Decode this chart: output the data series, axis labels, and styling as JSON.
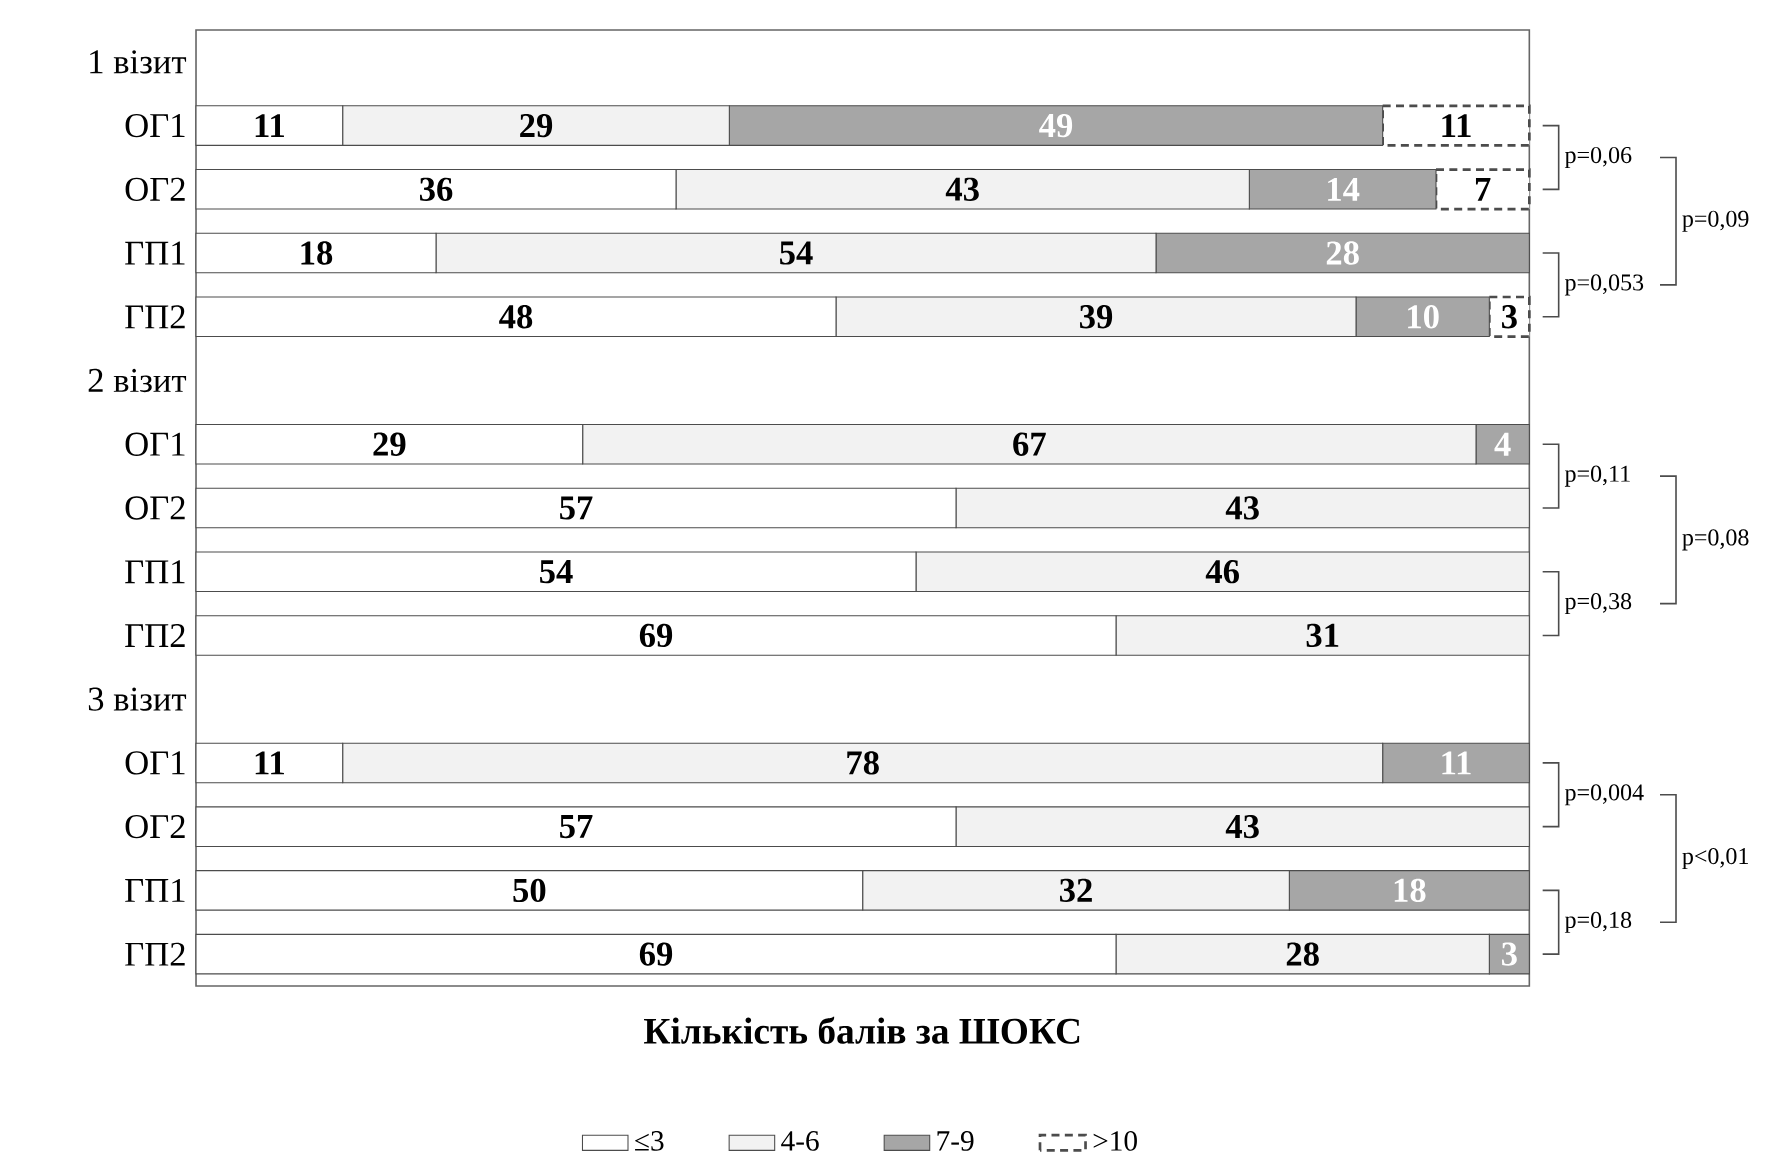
{
  "chart_data": {
    "type": "bar",
    "orientation": "horizontal",
    "stacked": true,
    "data_labels": true,
    "legend": "bottom",
    "tick_labels": "y",
    "xlim": [
      0,
      100
    ],
    "xlabel": "Кількість балів за ШОКС",
    "categories": [
      "1 візит",
      "ОГ1",
      "ОГ2",
      "ГП1",
      "ГП2",
      "2 візит",
      "ОГ1",
      "ОГ2",
      "ГП1",
      "ГП2",
      "3 візит",
      "ОГ1",
      "ОГ2",
      "ГП1",
      "ГП2"
    ],
    "series": [
      {
        "name": "≤3",
        "color": "#ffffff",
        "values": [
          null,
          11,
          36,
          18,
          48,
          null,
          29,
          57,
          54,
          69,
          null,
          11,
          57,
          50,
          69
        ]
      },
      {
        "name": "4-6",
        "color": "#f2f2f2",
        "values": [
          null,
          29,
          43,
          54,
          39,
          null,
          67,
          43,
          46,
          31,
          null,
          78,
          43,
          32,
          28
        ]
      },
      {
        "name": "7-9",
        "color": "#a6a6a6",
        "values": [
          null,
          49,
          14,
          28,
          10,
          null,
          4,
          null,
          null,
          null,
          null,
          11,
          null,
          18,
          3
        ]
      },
      {
        "name": ">10",
        "color": "#ffffff",
        "values": [
          null,
          11,
          7,
          null,
          3,
          null,
          null,
          null,
          null,
          null,
          null,
          null,
          null,
          null,
          null
        ]
      }
    ],
    "annotations": [
      "p=0,06",
      "p=0,09",
      "p=0,053",
      "p=0,11",
      "p=0,08",
      "p=0,38",
      "p=0,004",
      "p<0,01",
      "p=0,18"
    ]
  }
}
